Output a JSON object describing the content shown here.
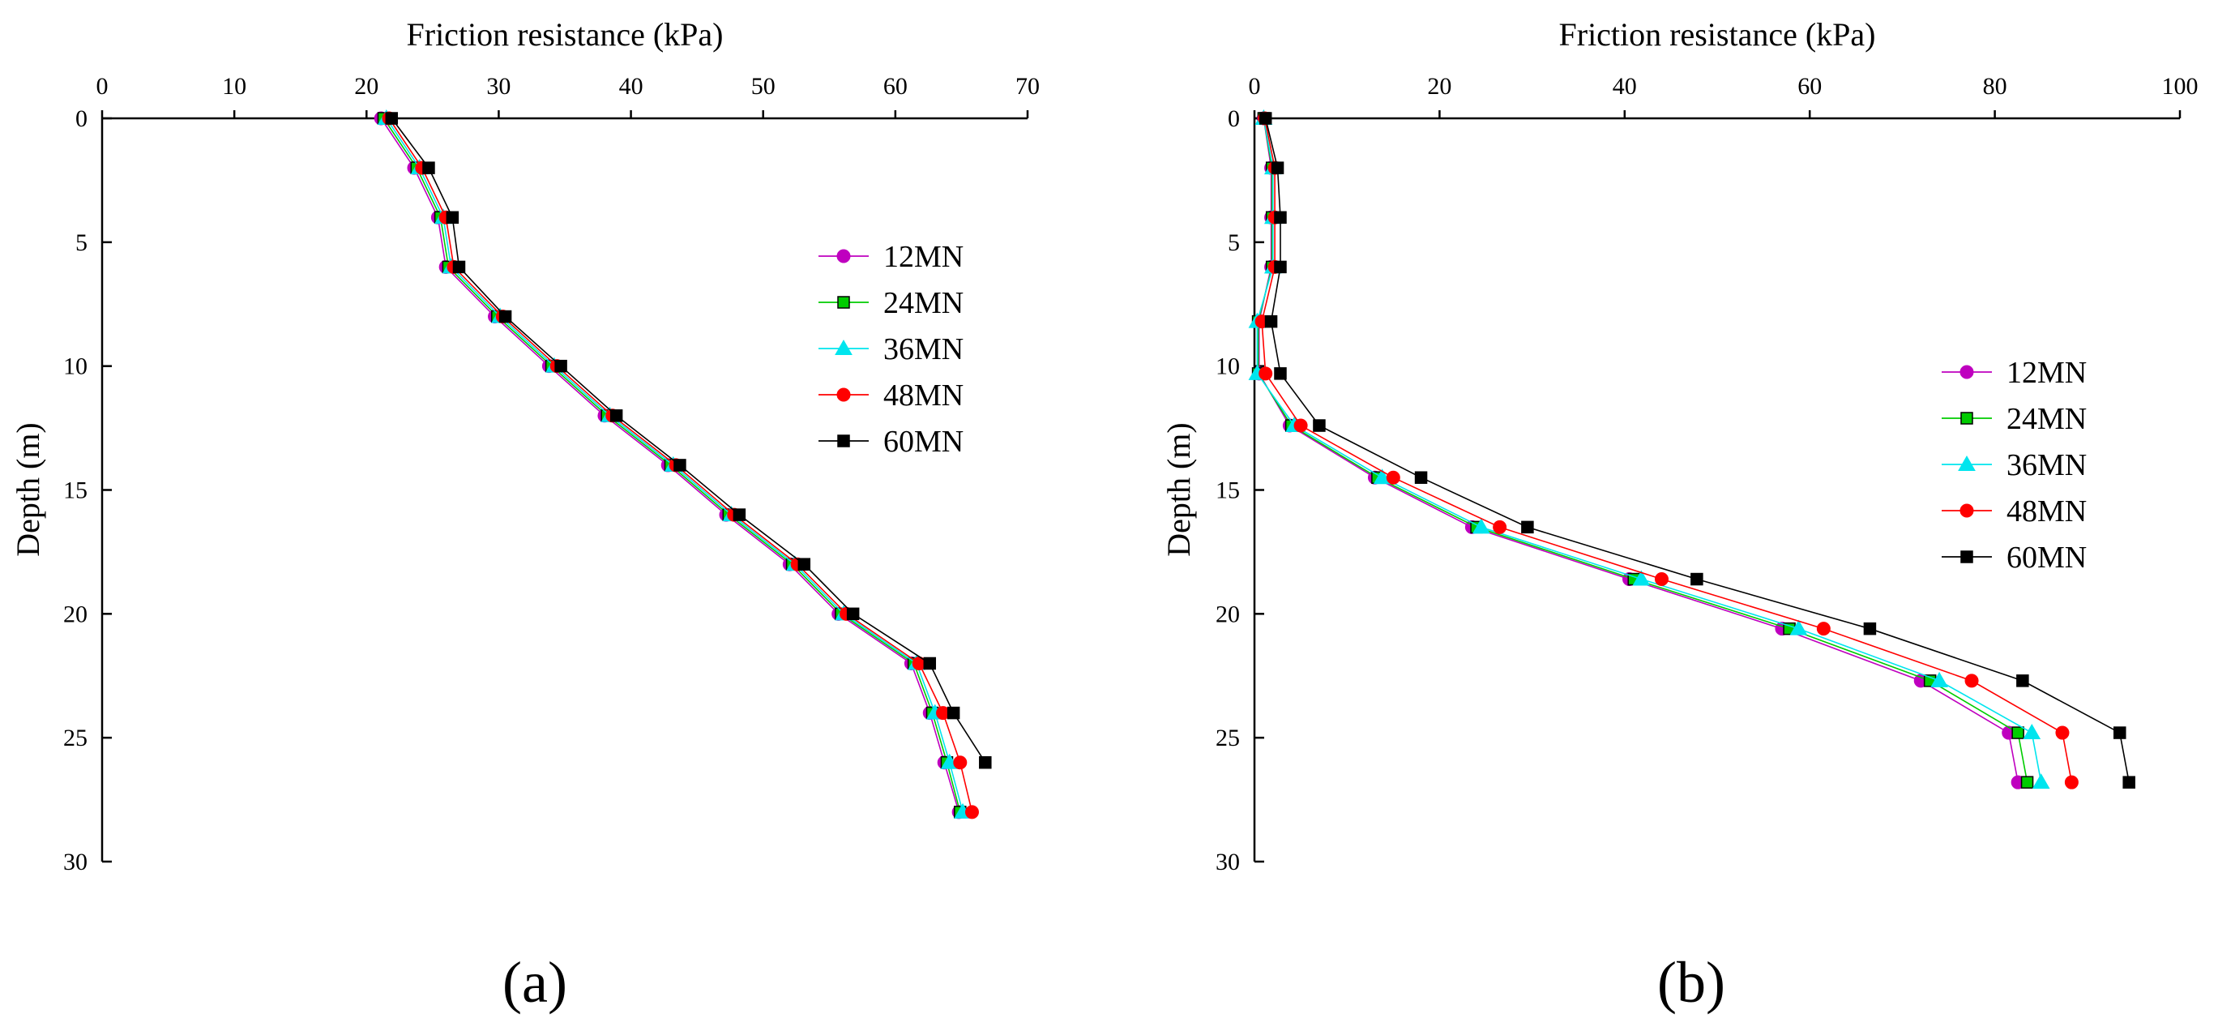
{
  "chart_data": [
    {
      "type": "line",
      "panel_label": "(a)",
      "xlabel": "Friction resistance (kPa)",
      "ylabel": "Depth (m)",
      "xlim": [
        0,
        70
      ],
      "ylim": [
        0,
        30
      ],
      "xticks": [
        "0",
        "10",
        "20",
        "30",
        "40",
        "50",
        "60",
        "70"
      ],
      "yticks": [
        "0",
        "5",
        "10",
        "15",
        "20",
        "25",
        "30"
      ],
      "legend_position": "right-middle",
      "series": [
        {
          "name": "12MN",
          "color": "#BF00BF",
          "marker": "circle",
          "points": [
            [
              21.1,
              0
            ],
            [
              23.6,
              2
            ],
            [
              25.4,
              4
            ],
            [
              26,
              6
            ],
            [
              29.7,
              8
            ],
            [
              33.8,
              10
            ],
            [
              38,
              12
            ],
            [
              42.8,
              14
            ],
            [
              47.2,
              16
            ],
            [
              52,
              18
            ],
            [
              55.7,
              20
            ],
            [
              61.2,
              22
            ],
            [
              62.6,
              24
            ],
            [
              63.7,
              26
            ],
            [
              64.8,
              28
            ]
          ]
        },
        {
          "name": "24MN",
          "color": "#00CC00",
          "marker": "square",
          "points": [
            [
              21.3,
              0
            ],
            [
              23.8,
              2
            ],
            [
              25.6,
              4
            ],
            [
              26.2,
              6
            ],
            [
              29.9,
              8
            ],
            [
              34,
              10
            ],
            [
              38.2,
              12
            ],
            [
              43,
              14
            ],
            [
              47.4,
              16
            ],
            [
              52.2,
              18
            ],
            [
              55.9,
              20
            ],
            [
              61.4,
              22
            ],
            [
              62.8,
              24
            ],
            [
              63.9,
              26
            ],
            [
              64.9,
              28
            ]
          ]
        },
        {
          "name": "36MN",
          "color": "#00E5EE",
          "marker": "triangle",
          "points": [
            [
              21.5,
              0
            ],
            [
              24,
              2
            ],
            [
              25.8,
              4
            ],
            [
              26.4,
              6
            ],
            [
              30.1,
              8
            ],
            [
              34.2,
              10
            ],
            [
              38.4,
              12
            ],
            [
              43.2,
              14
            ],
            [
              47.6,
              16
            ],
            [
              52.4,
              18
            ],
            [
              56.1,
              20
            ],
            [
              61.6,
              22
            ],
            [
              63,
              24
            ],
            [
              64.1,
              26
            ],
            [
              65.1,
              28
            ]
          ]
        },
        {
          "name": "48MN",
          "color": "#FF0000",
          "marker": "circle",
          "points": [
            [
              21.7,
              0
            ],
            [
              24.2,
              2
            ],
            [
              26,
              4
            ],
            [
              26.6,
              6
            ],
            [
              30.3,
              8
            ],
            [
              34.4,
              10
            ],
            [
              38.6,
              12
            ],
            [
              43.4,
              14
            ],
            [
              47.8,
              16
            ],
            [
              52.6,
              18
            ],
            [
              56.3,
              20
            ],
            [
              61.8,
              22
            ],
            [
              63.6,
              24
            ],
            [
              64.9,
              26
            ],
            [
              65.8,
              28
            ]
          ]
        },
        {
          "name": "60MN",
          "color": "#000000",
          "marker": "square",
          "points": [
            [
              21.9,
              0
            ],
            [
              24.7,
              2
            ],
            [
              26.5,
              4
            ],
            [
              27,
              6
            ],
            [
              30.5,
              8
            ],
            [
              34.7,
              10
            ],
            [
              38.9,
              12
            ],
            [
              43.7,
              14
            ],
            [
              48.2,
              16
            ],
            [
              53.1,
              18
            ],
            [
              56.8,
              20
            ],
            [
              62.6,
              22
            ],
            [
              64.4,
              24
            ],
            [
              66.8,
              26
            ]
          ]
        }
      ]
    },
    {
      "type": "line",
      "panel_label": "(b)",
      "xlabel": "Friction resistance (kPa)",
      "ylabel": "Depth (m)",
      "xlim": [
        0,
        100
      ],
      "ylim": [
        0,
        30
      ],
      "xticks": [
        "0",
        "20",
        "40",
        "60",
        "80",
        "100"
      ],
      "yticks": [
        "0",
        "5",
        "10",
        "15",
        "20",
        "25",
        "30"
      ],
      "legend_position": "right-middle",
      "series": [
        {
          "name": "12MN",
          "color": "#BF00BF",
          "marker": "circle",
          "points": [
            [
              1,
              0
            ],
            [
              1.8,
              2
            ],
            [
              1.8,
              4
            ],
            [
              1.8,
              6
            ],
            [
              0.5,
              8.2
            ],
            [
              0.5,
              10.3
            ],
            [
              3.8,
              12.4
            ],
            [
              13,
              14.5
            ],
            [
              23.5,
              16.5
            ],
            [
              40.5,
              18.6
            ],
            [
              57,
              20.6
            ],
            [
              72,
              22.7
            ],
            [
              81.5,
              24.8
            ],
            [
              82.5,
              26.8
            ]
          ]
        },
        {
          "name": "24MN",
          "color": "#00CC00",
          "marker": "square",
          "points": [
            [
              1,
              0
            ],
            [
              1.9,
              2
            ],
            [
              1.9,
              4
            ],
            [
              1.9,
              6
            ],
            [
              0.4,
              8.2
            ],
            [
              0.4,
              10.3
            ],
            [
              4,
              12.4
            ],
            [
              13.3,
              14.5
            ],
            [
              24,
              16.5
            ],
            [
              41,
              18.6
            ],
            [
              57.8,
              20.6
            ],
            [
              73,
              22.7
            ],
            [
              82.5,
              24.8
            ],
            [
              83.5,
              26.8
            ]
          ]
        },
        {
          "name": "36MN",
          "color": "#00E5EE",
          "marker": "triangle",
          "points": [
            [
              1,
              0
            ],
            [
              2,
              2
            ],
            [
              2,
              4
            ],
            [
              2,
              6
            ],
            [
              0.3,
              8.2
            ],
            [
              0.3,
              10.3
            ],
            [
              4.3,
              12.4
            ],
            [
              13.8,
              14.5
            ],
            [
              24.5,
              16.5
            ],
            [
              41.8,
              18.6
            ],
            [
              58.8,
              20.6
            ],
            [
              74,
              22.7
            ],
            [
              84,
              24.8
            ],
            [
              85,
              26.8
            ]
          ]
        },
        {
          "name": "48MN",
          "color": "#FF0000",
          "marker": "circle",
          "points": [
            [
              1.1,
              0
            ],
            [
              2.2,
              2
            ],
            [
              2.2,
              4
            ],
            [
              2.2,
              6
            ],
            [
              0.8,
              8.2
            ],
            [
              1.2,
              10.3
            ],
            [
              5,
              12.4
            ],
            [
              15,
              14.5
            ],
            [
              26.5,
              16.5
            ],
            [
              44,
              18.6
            ],
            [
              61.5,
              20.6
            ],
            [
              77.5,
              22.7
            ],
            [
              87.3,
              24.8
            ],
            [
              88.3,
              26.8
            ]
          ]
        },
        {
          "name": "60MN",
          "color": "#000000",
          "marker": "square",
          "points": [
            [
              1.2,
              0
            ],
            [
              2.5,
              2
            ],
            [
              2.8,
              4
            ],
            [
              2.8,
              6
            ],
            [
              1.8,
              8.2
            ],
            [
              2.8,
              10.3
            ],
            [
              7,
              12.4
            ],
            [
              18,
              14.5
            ],
            [
              29.5,
              16.5
            ],
            [
              47.8,
              18.6
            ],
            [
              66.5,
              20.6
            ],
            [
              83,
              22.7
            ],
            [
              93.5,
              24.8
            ],
            [
              94.5,
              26.8
            ]
          ]
        }
      ]
    }
  ]
}
